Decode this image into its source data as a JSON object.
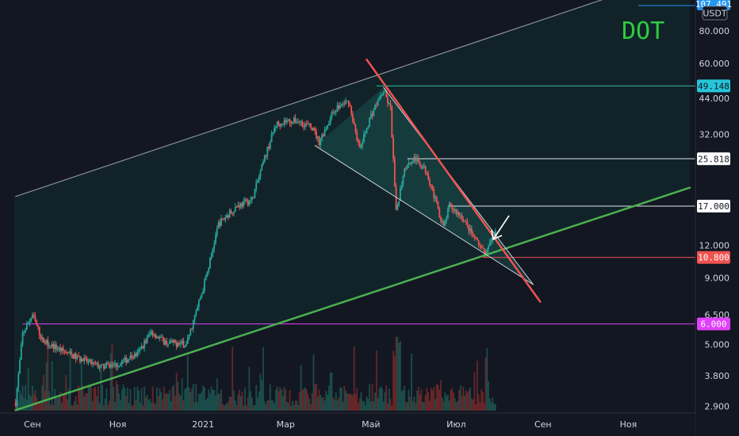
{
  "chart_data": {
    "type": "candlestick",
    "symbol": "DOT",
    "currency": "USDT",
    "y_scale": "log",
    "ylim": [
      2.75,
      105
    ],
    "xlim": [
      "2020-08-19",
      "2021-12-15"
    ],
    "y_ticks": [
      "80.000",
      "60.000",
      "44.000",
      "32.000",
      "17.000",
      "12.000",
      "9.000",
      "6.500",
      "5.000",
      "3.800",
      "2.900"
    ],
    "x_ticks": [
      {
        "date": "2020-09-01",
        "label": "Сен"
      },
      {
        "date": "2020-11-01",
        "label": "Ноя"
      },
      {
        "date": "2021-01-01",
        "label": "2021"
      },
      {
        "date": "2021-03-01",
        "label": "Мар"
      },
      {
        "date": "2021-05-01",
        "label": "Май"
      },
      {
        "date": "2021-07-01",
        "label": "Июл"
      },
      {
        "date": "2021-09-01",
        "label": "Сен"
      },
      {
        "date": "2021-11-01",
        "label": "Ноя"
      }
    ],
    "price_path": [
      [
        "2020-08-20",
        3.0
      ],
      [
        "2020-08-25",
        5.5
      ],
      [
        "2020-09-01",
        6.5
      ],
      [
        "2020-09-08",
        5.2
      ],
      [
        "2020-09-20",
        4.8
      ],
      [
        "2020-10-05",
        4.4
      ],
      [
        "2020-10-20",
        4.1
      ],
      [
        "2020-11-01",
        4.2
      ],
      [
        "2020-11-15",
        4.6
      ],
      [
        "2020-11-25",
        5.6
      ],
      [
        "2020-12-05",
        5.1
      ],
      [
        "2020-12-20",
        5.0
      ],
      [
        "2021-01-01",
        8.2
      ],
      [
        "2021-01-05",
        10.0
      ],
      [
        "2021-01-12",
        14.5
      ],
      [
        "2021-01-25",
        17.0
      ],
      [
        "2021-02-05",
        18.0
      ],
      [
        "2021-02-15",
        27.0
      ],
      [
        "2021-02-22",
        35.0
      ],
      [
        "2021-03-01",
        36.0
      ],
      [
        "2021-03-10",
        36.0
      ],
      [
        "2021-03-20",
        34.0
      ],
      [
        "2021-03-25",
        30.0
      ],
      [
        "2021-04-05",
        40.0
      ],
      [
        "2021-04-15",
        43.0
      ],
      [
        "2021-04-23",
        28.0
      ],
      [
        "2021-05-01",
        38.0
      ],
      [
        "2021-05-10",
        47.0
      ],
      [
        "2021-05-15",
        40.0
      ],
      [
        "2021-05-19",
        16.0
      ],
      [
        "2021-05-25",
        24.0
      ],
      [
        "2021-06-01",
        26.0
      ],
      [
        "2021-06-10",
        23.0
      ],
      [
        "2021-06-22",
        14.0
      ],
      [
        "2021-06-26",
        17.0
      ],
      [
        "2021-07-05",
        15.5
      ],
      [
        "2021-07-15",
        12.5
      ],
      [
        "2021-07-22",
        11.0
      ],
      [
        "2021-07-29",
        13.8
      ]
    ],
    "price_levels": [
      {
        "value": 49.148,
        "label": "49.148",
        "color": "#2dbda8",
        "tag_color": "#26c6da",
        "start": "2021-05-05"
      },
      {
        "value": 25.818,
        "label": "25.818",
        "color": "#e0e3eb",
        "tag_color": "#ffffff",
        "start": "2021-05-27"
      },
      {
        "value": 17.0,
        "label": "17.000",
        "color": "#e0e3eb",
        "tag_color": "#ffffff",
        "start": "2021-06-25"
      },
      {
        "value": 10.8,
        "label": "10.800",
        "color": "#ef5350",
        "tag_color": "#ef5350",
        "start": "2021-07-20"
      },
      {
        "value": 6.0,
        "label": "6.000",
        "color": "#e040fb",
        "tag_color": "#e040fb",
        "start": "2020-08-25"
      }
    ],
    "top_tag": {
      "label": "107.491",
      "color": "#2196f3"
    },
    "trendlines": [
      {
        "name": "channel-upper",
        "color": "#8a8f99",
        "from": [
          "2020-08-20",
          18.5
        ],
        "to": [
          "2021-10-15",
          106
        ]
      },
      {
        "name": "channel-lower",
        "color": "#4caf50",
        "from": [
          "2020-08-20",
          2.8
        ],
        "to": [
          "2021-12-15",
          20.0
        ]
      },
      {
        "name": "red-downtrend",
        "color": "#ef5350",
        "from": [
          "2021-04-28",
          62.0
        ],
        "to": [
          "2021-08-30",
          7.3
        ]
      },
      {
        "name": "wedge-upper",
        "color": "#cfd3dc",
        "from": [
          "2021-05-10",
          48.5
        ],
        "to": [
          "2021-08-25",
          8.5
        ]
      },
      {
        "name": "wedge-lower",
        "color": "#cfd3dc",
        "from": [
          "2021-03-22",
          29.0
        ],
        "to": [
          "2021-08-25",
          8.5
        ]
      }
    ],
    "wedge_apex_left": [
      "2021-03-22",
      29.0
    ]
  }
}
